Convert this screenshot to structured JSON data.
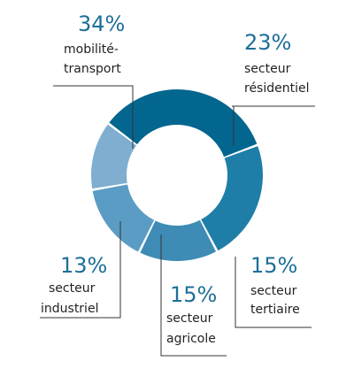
{
  "chart_data": {
    "type": "pie",
    "style": "donut",
    "title": "",
    "slices": [
      {
        "percent_label": "34%",
        "value": 34,
        "label_lines": [
          "mobilité-",
          "transport"
        ],
        "color": "#02668f"
      },
      {
        "percent_label": "23%",
        "value": 23,
        "label_lines": [
          "secteur",
          "résidentiel"
        ],
        "color": "#1f7ea8"
      },
      {
        "percent_label": "15%",
        "value": 15,
        "label_lines": [
          "secteur",
          "tertiaire"
        ],
        "color": "#3e8cb6"
      },
      {
        "percent_label": "15%",
        "value": 15,
        "label_lines": [
          "secteur",
          "agricole"
        ],
        "color": "#5a9cc4"
      },
      {
        "percent_label": "13%",
        "value": 13,
        "label_lines": [
          "secteur",
          "industriel"
        ],
        "color": "#7faed0"
      }
    ]
  }
}
